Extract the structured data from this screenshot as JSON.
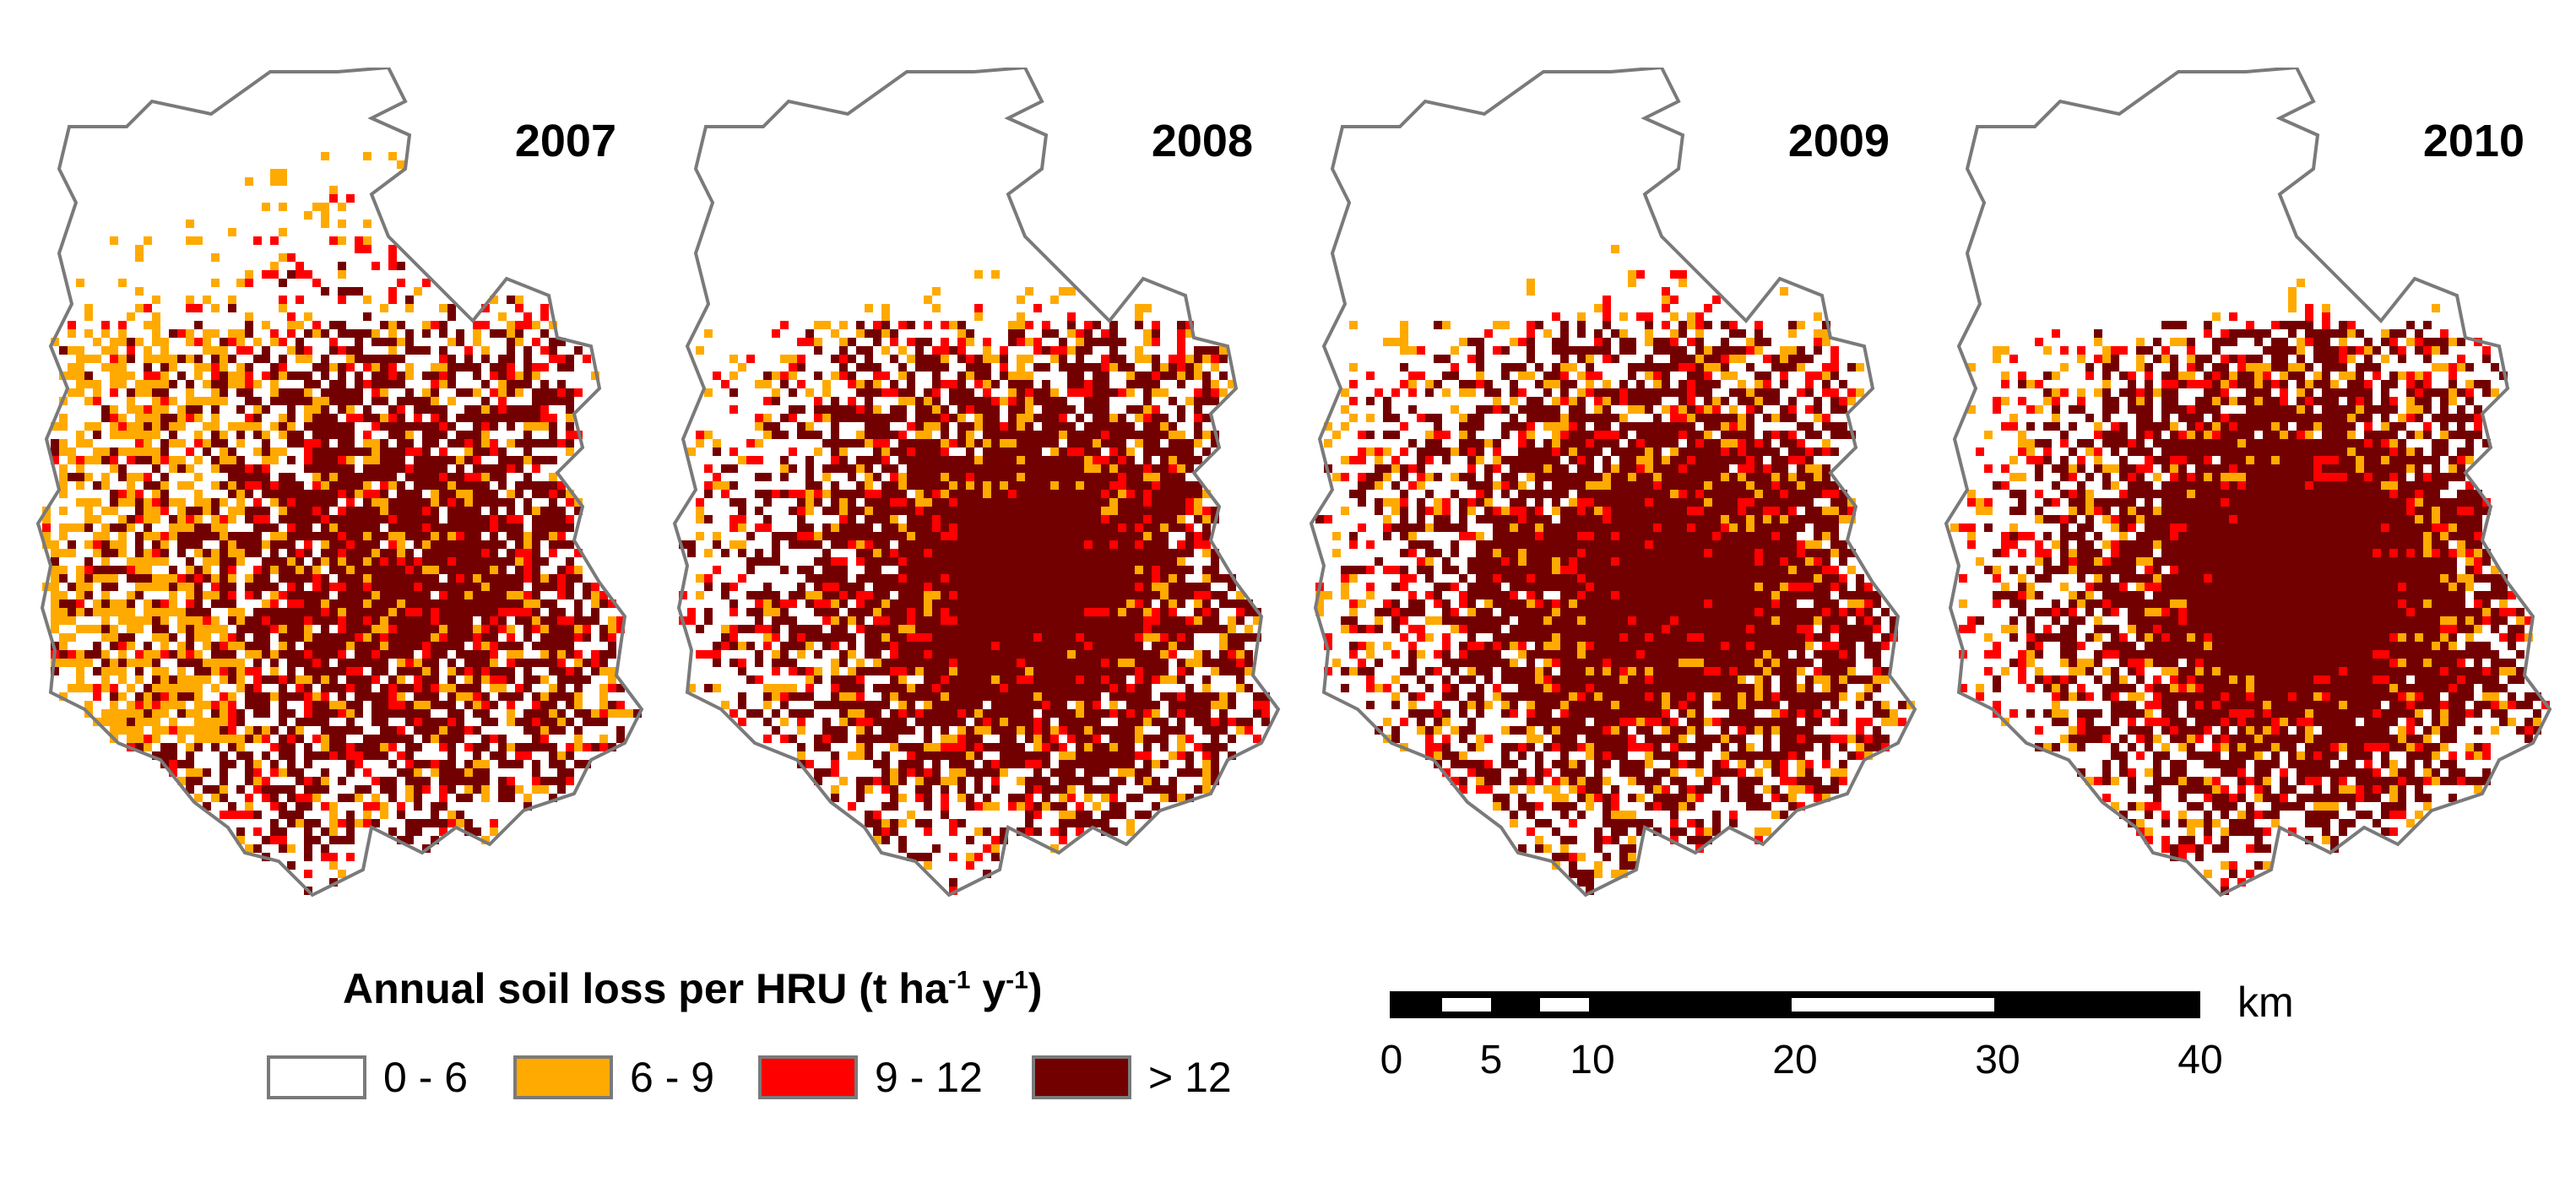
{
  "maps": [
    {
      "year": "2007"
    },
    {
      "year": "2008"
    },
    {
      "year": "2009"
    },
    {
      "year": "2010"
    }
  ],
  "legend": {
    "title": "Annual soil loss per HRU (t ha",
    "title_sup1": "-1",
    "title_mid": " y",
    "title_sup2": "-1",
    "title_end": ")",
    "classes": [
      {
        "label": "0 - 6",
        "color": "#ffffff"
      },
      {
        "label": "6 - 9",
        "color": "#ffaa00"
      },
      {
        "label": "9 - 12",
        "color": "#ff0000"
      },
      {
        "label": "> 12",
        "color": "#730000"
      }
    ]
  },
  "scale_bar": {
    "unit": "km",
    "ticks": [
      "0",
      "5",
      "10",
      "20",
      "30",
      "40"
    ]
  },
  "colors": {
    "boundary": "#7a7a7a"
  }
}
